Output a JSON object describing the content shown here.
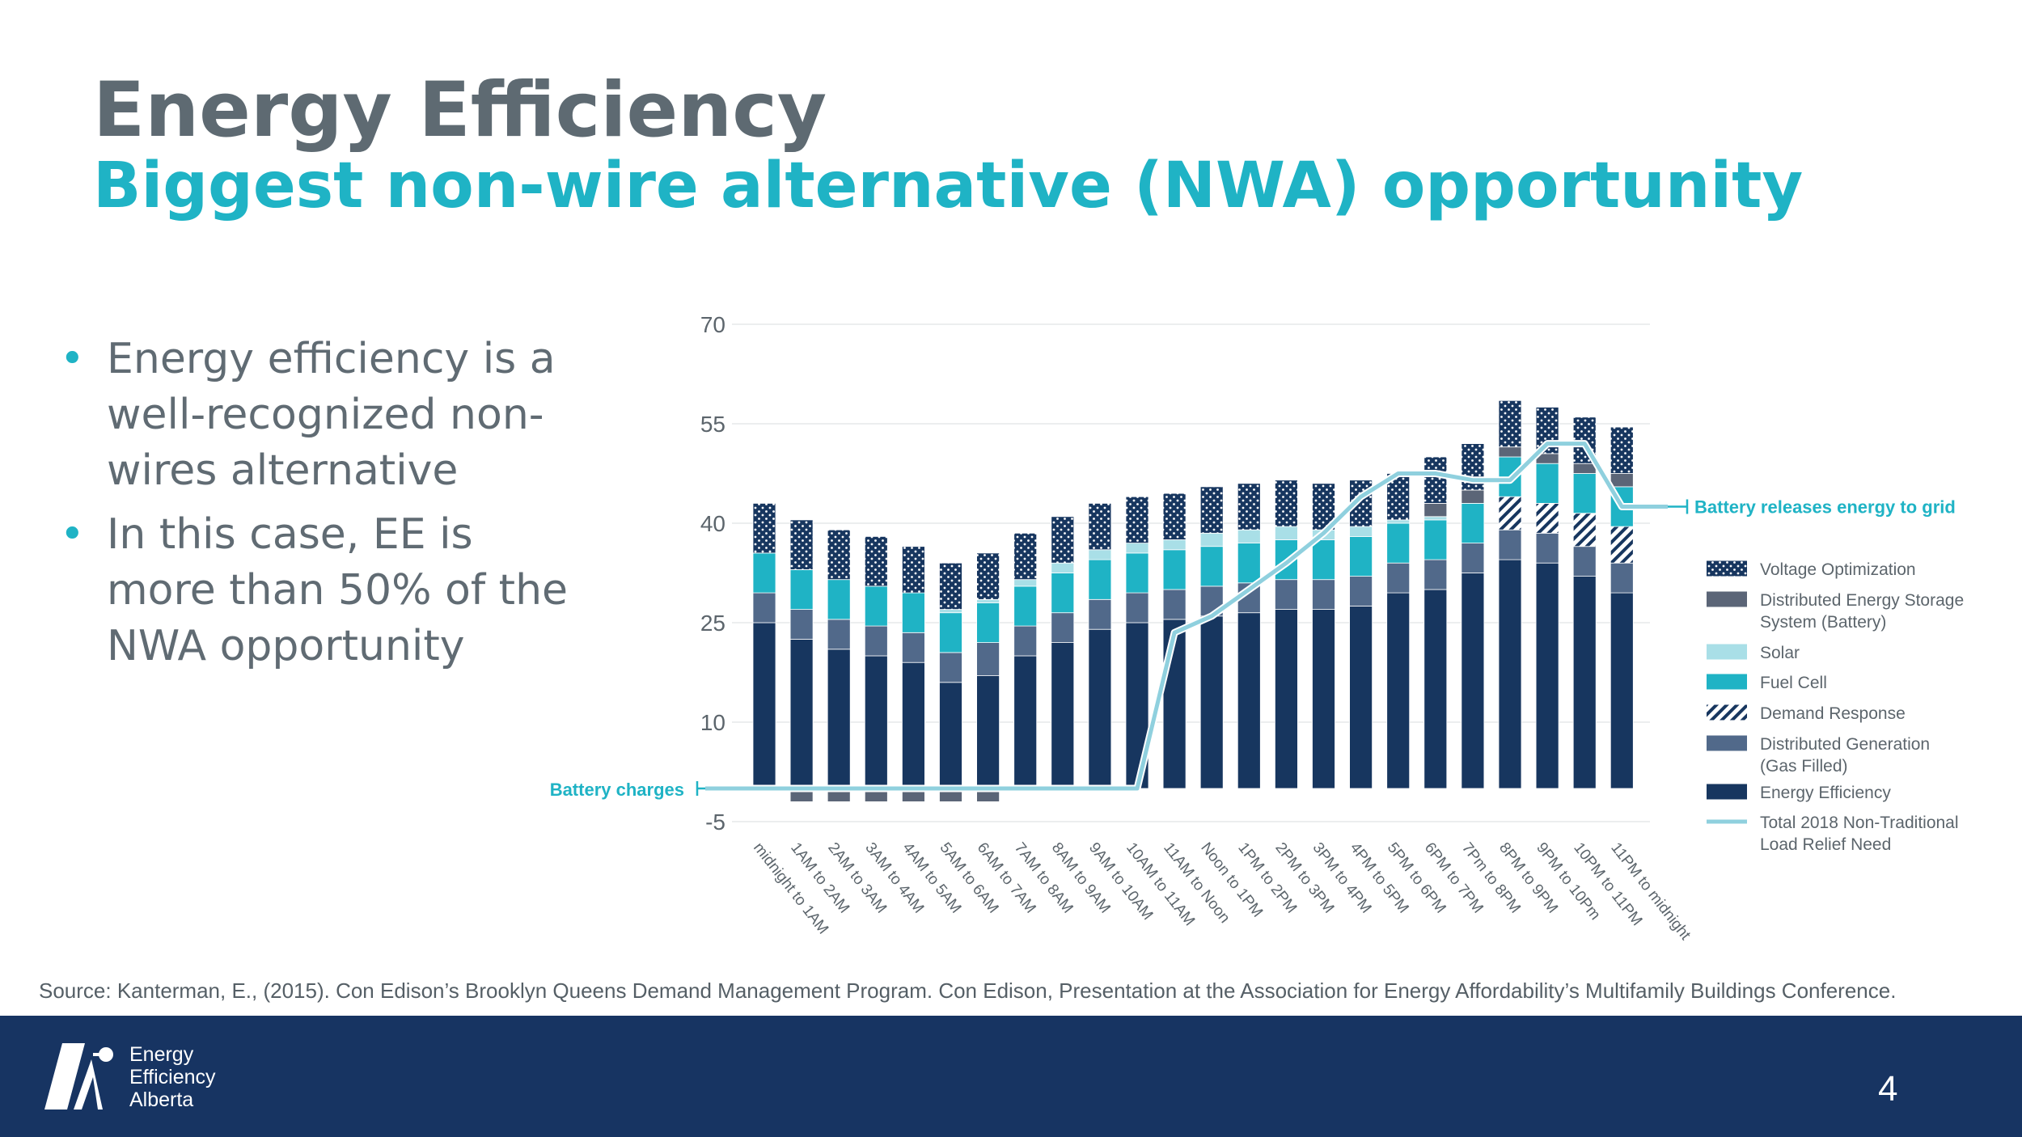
{
  "header": {
    "title": "Energy Efficiency",
    "subtitle": "Biggest non-wire alternative (NWA) opportunity"
  },
  "bullets": [
    "Energy efficiency is a well-recognized non-wires alternative",
    "In this case, EE is more than 50% of the NWA opportunity"
  ],
  "source": "Source: Kanterman, E., (2015). Con Edison’s Brooklyn Queens Demand Management Program. Con Edison, Presentation at the Association for Energy Affordability’s Multifamily Buildings Conference.",
  "footer": {
    "logo_lines": [
      "Energy",
      "Efficiency",
      "Alberta"
    ],
    "page_number": "4"
  },
  "colors": {
    "title": "#5e6a72",
    "accent": "#1fb3c5",
    "footer": "#173462"
  },
  "chart_data": {
    "type": "bar",
    "stacked": true,
    "ylim": [
      -5,
      70
    ],
    "yticks": [
      -5,
      10,
      25,
      40,
      55,
      70
    ],
    "grid": true,
    "legend_position": "right",
    "categories": [
      "midnight to 1AM",
      "1AM to 2AM",
      "2AM to 3AM",
      "3AM to 4AM",
      "4AM to 5AM",
      "5AM to 6AM",
      "6AM to 7AM",
      "7AM to 8AM",
      "8AM to 9AM",
      "9AM to 10AM",
      "10AM to 11AM",
      "11AM to Noon",
      "Noon to 1PM",
      "1PM to 2PM",
      "2PM to 3PM",
      "3PM to 4PM",
      "4PM to 5PM",
      "5PM to 6PM",
      "6PM to 7PM",
      "7Pm to 8PM",
      "8PM to 9PM",
      "9PM to 10Pm",
      "10PM to 11PM",
      "11PM to midnight"
    ],
    "series": [
      {
        "name": "Energy Efficiency",
        "color": "#17365f",
        "pattern": "solid",
        "values": [
          25,
          22.5,
          21,
          20,
          19,
          16,
          17,
          20,
          22,
          24,
          25,
          25.5,
          26,
          26.5,
          27,
          27,
          27.5,
          29.5,
          30,
          32.5,
          34.5,
          34,
          32,
          29.5
        ]
      },
      {
        "name": "Distributed Generation (Gas Filled)",
        "color": "#51698a",
        "pattern": "solid",
        "values": [
          4.5,
          4.5,
          4.5,
          4.5,
          4.5,
          4.5,
          5,
          4.5,
          4.5,
          4.5,
          4.5,
          4.5,
          4.5,
          4.5,
          4.5,
          4.5,
          4.5,
          4.5,
          4.5,
          4.5,
          4.5,
          4.5,
          4.5,
          4.5
        ]
      },
      {
        "name": "Demand Response",
        "color": "#17365f",
        "pattern": "hatch",
        "values": [
          0,
          0,
          0,
          0,
          0,
          0,
          0,
          0,
          0,
          0,
          0,
          0,
          0,
          0,
          0,
          0,
          0,
          0,
          0,
          0,
          5,
          4.5,
          5,
          5.5
        ]
      },
      {
        "name": "Fuel Cell",
        "color": "#1fb3c5",
        "pattern": "solid",
        "values": [
          6,
          6,
          6,
          6,
          6,
          6,
          6,
          6,
          6,
          6,
          6,
          6,
          6,
          6,
          6,
          6,
          6,
          6,
          6,
          6,
          6,
          6,
          6,
          6
        ]
      },
      {
        "name": "Solar",
        "color": "#a9dfe7",
        "pattern": "solid",
        "values": [
          0,
          0,
          0,
          0,
          0,
          0.5,
          0.5,
          1,
          1.5,
          1.5,
          1.5,
          1.5,
          2,
          2,
          2,
          1.5,
          1.5,
          0.5,
          0.5,
          0,
          0,
          0,
          0,
          0
        ]
      },
      {
        "name": "Distributed Energy Storage System (Battery)",
        "color": "#5b6577",
        "pattern": "solid",
        "values": [
          0,
          -2,
          -2,
          -2,
          -2,
          -2,
          -2,
          0,
          0,
          0,
          0,
          0,
          0,
          0,
          0,
          0,
          0,
          0,
          2,
          2,
          1.5,
          1.5,
          1.5,
          2
        ]
      },
      {
        "name": "Voltage Optimization",
        "color": "#17365f",
        "pattern": "dots",
        "values": [
          7.5,
          7.5,
          7.5,
          7.5,
          7,
          7,
          7,
          7,
          7,
          7,
          7,
          7,
          7,
          7,
          7,
          7,
          7,
          7,
          7,
          7,
          7,
          7,
          7,
          7
        ]
      }
    ],
    "line_series": {
      "name": "Total 2018 Non-Traditional Load Relief Need",
      "color": "#8fd0de",
      "values": [
        0,
        0,
        0,
        0,
        0,
        0,
        0,
        0,
        0,
        0,
        0,
        23.5,
        26,
        30,
        34,
        38.5,
        44,
        47.5,
        47.5,
        46.5,
        46.5,
        52,
        52,
        42.5
      ]
    },
    "legend": [
      {
        "name": "Voltage Optimization",
        "swatch": "dots"
      },
      {
        "name": "Distributed Energy Storage System (Battery)",
        "swatch": "battery"
      },
      {
        "name": "Solar",
        "swatch": "solar"
      },
      {
        "name": "Fuel Cell",
        "swatch": "fuel"
      },
      {
        "name": "Demand Response",
        "swatch": "hatch"
      },
      {
        "name": "Distributed Generation (Gas Filled)",
        "swatch": "dg"
      },
      {
        "name": "Energy Efficiency",
        "swatch": "ee"
      },
      {
        "name": "Total 2018 Non-Traditional Load Relief Need",
        "swatch": "line"
      }
    ],
    "annotations": [
      {
        "text": "Battery charges",
        "side": "left"
      },
      {
        "text": "Battery releases energy to grid",
        "side": "right"
      }
    ]
  }
}
